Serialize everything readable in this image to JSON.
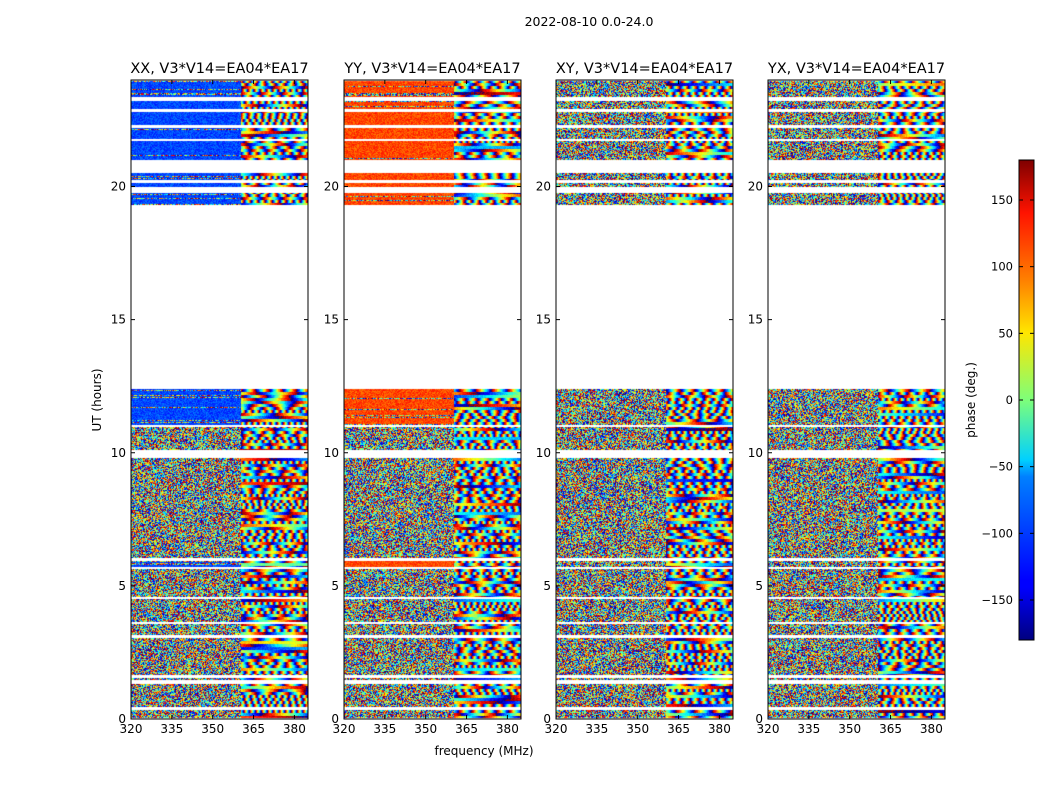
{
  "chart_data": {
    "type": "heatmap",
    "title": "2022-08-10 0.0-24.0",
    "xlabel": "frequency (MHz)",
    "ylabel": "UT (hours)",
    "xlim": [
      320,
      385
    ],
    "ylim": [
      0,
      24
    ],
    "x_ticks": [
      320,
      335,
      350,
      365,
      380
    ],
    "y_ticks": [
      0,
      5,
      10,
      15,
      20
    ],
    "panels": [
      {
        "title": "XX, V3*V14=EA04*EA17",
        "coherent_phase_deg": -110
      },
      {
        "title": "YY, V3*V14=EA04*EA17",
        "coherent_phase_deg": 110
      },
      {
        "title": "XY, V3*V14=EA04*EA17",
        "coherent_phase_deg": null
      },
      {
        "title": "YX, V3*V14=EA04*EA17",
        "coherent_phase_deg": null
      }
    ],
    "data_blocks_hours": [
      [
        0.05,
        0.35
      ],
      [
        0.45,
        1.3
      ],
      [
        1.45,
        1.55
      ],
      [
        1.65,
        3.05
      ],
      [
        3.15,
        3.55
      ],
      [
        3.65,
        4.5
      ],
      [
        4.6,
        5.65
      ],
      [
        5.7,
        5.95
      ],
      [
        6.05,
        9.8
      ],
      [
        10.1,
        10.95
      ],
      [
        11.05,
        12.4
      ],
      [
        19.3,
        19.75
      ],
      [
        20.0,
        20.15
      ],
      [
        20.25,
        20.5
      ],
      [
        21.0,
        21.7
      ],
      [
        21.8,
        22.2
      ],
      [
        22.3,
        22.8
      ],
      [
        22.9,
        23.2
      ],
      [
        23.35,
        23.95
      ]
    ],
    "colorbar": {
      "label": "phase (deg.)",
      "min": -180,
      "max": 180,
      "ticks": [
        -150,
        -100,
        -50,
        0,
        50,
        100,
        150
      ],
      "colormap": "jet"
    }
  }
}
